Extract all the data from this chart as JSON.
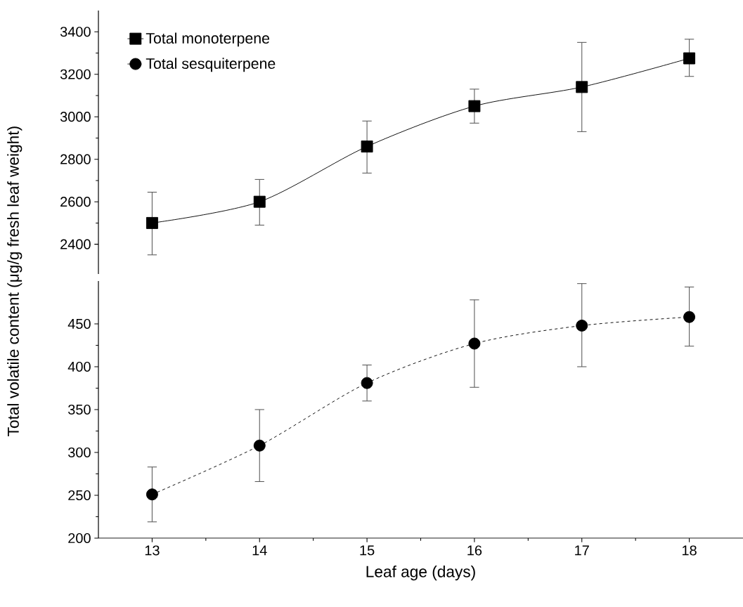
{
  "chart_data": [
    {
      "type": "line",
      "ylabel": "Total volatile content (μg/g fresh leaf weight)",
      "x": [
        13,
        14,
        15,
        16,
        17,
        18
      ],
      "ylim": [
        2260,
        3500
      ],
      "yticks": [
        2400,
        2600,
        2800,
        3000,
        3200,
        3400
      ],
      "tick_labels": "y",
      "legend": "top left",
      "series": [
        {
          "name": "Total monoterpene",
          "color": "#000000",
          "marker": "square",
          "line_style": "solid",
          "values": [
            2500,
            2600,
            2860,
            3050,
            3140,
            3275
          ],
          "errors": [
            [
              2350,
              2645
            ],
            [
              2490,
              2705
            ],
            [
              2735,
              2980
            ],
            [
              2970,
              3130
            ],
            [
              2930,
              3350
            ],
            [
              3190,
              3365
            ]
          ]
        }
      ]
    },
    {
      "type": "line",
      "xlabel": "Leaf age (days)",
      "x": [
        13,
        14,
        15,
        16,
        17,
        18
      ],
      "xlim": [
        12.5,
        18.5
      ],
      "xticks": [
        13,
        14,
        15,
        16,
        17,
        18
      ],
      "ylim": [
        200,
        500
      ],
      "yticks": [
        200,
        250,
        300,
        350,
        400,
        450
      ],
      "legend": "top left",
      "series": [
        {
          "name": "Total sesquiterpene",
          "color": "#000000",
          "marker": "circle",
          "line_style": "dashed",
          "values": [
            251,
            308,
            381,
            427,
            448,
            458
          ],
          "errors": [
            [
              219,
              283
            ],
            [
              266,
              350
            ],
            [
              360,
              402
            ],
            [
              376,
              478
            ],
            [
              400,
              497
            ],
            [
              424,
              493
            ]
          ]
        }
      ]
    }
  ]
}
